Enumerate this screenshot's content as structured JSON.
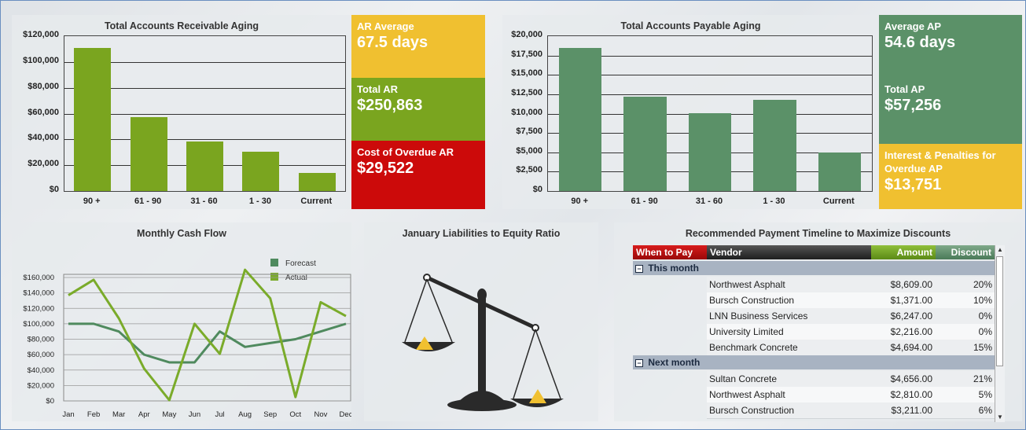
{
  "ar_chart": {
    "title": "Total Accounts Receivable Aging",
    "y_ticks": [
      "$120,000",
      "$100,000",
      "$80,000",
      "$60,000",
      "$40,000",
      "$20,000",
      "$0"
    ],
    "color": "#7aa51f"
  },
  "ap_chart": {
    "title": "Total Accounts Payable Aging",
    "y_ticks": [
      "$20,000",
      "$17,500",
      "$15,000",
      "$12,500",
      "$10,000",
      "$7,500",
      "$5,000",
      "$2,500",
      "$0"
    ],
    "color": "#5b9168"
  },
  "kpis": {
    "ar_average": {
      "label": "AR Average",
      "value": "67.5 days",
      "color": "#f0c030"
    },
    "total_ar": {
      "label": "Total AR",
      "value": "$250,863",
      "color": "#7aa51f"
    },
    "overdue_ar": {
      "label": "Cost of Overdue AR",
      "value": "$29,522",
      "color": "#cc0a0a"
    },
    "avg_ap": {
      "label": "Average AP",
      "value": "54.6 days",
      "color": "#5b9168"
    },
    "total_ap": {
      "label": "Total AP",
      "value": "$57,256",
      "color": "#5b9168"
    },
    "interest": {
      "label": "Interest & Penalties for Overdue AP",
      "value": "$13,751",
      "color": "#f0c030"
    }
  },
  "cash_flow": {
    "title": "Monthly Cash Flow",
    "y_ticks": [
      "$160,000",
      "$140,000",
      "$120,000",
      "$100,000",
      "$80,000",
      "$60,000",
      "$40,000",
      "$20,000",
      "$0"
    ],
    "legend": [
      "Forecast",
      "Actual"
    ]
  },
  "ratio": {
    "title": "January Liabilities to Equity Ratio"
  },
  "payments": {
    "title": "Recommended Payment Timeline to Maximize Discounts",
    "headers": {
      "when": "When to Pay",
      "vendor": "Vendor",
      "amount": "Amount",
      "discount": "Discount"
    },
    "groups": [
      {
        "label": "This month",
        "rows": [
          {
            "vendor": "Northwest Asphalt",
            "amount": "$8,609.00",
            "discount": "20%"
          },
          {
            "vendor": "Bursch Construction",
            "amount": "$1,371.00",
            "discount": "10%"
          },
          {
            "vendor": "LNN Business Services",
            "amount": "$6,247.00",
            "discount": "0%"
          },
          {
            "vendor": "University Limited",
            "amount": "$2,216.00",
            "discount": "0%"
          },
          {
            "vendor": "Benchmark Concrete",
            "amount": "$4,694.00",
            "discount": "15%"
          }
        ]
      },
      {
        "label": "Next month",
        "rows": [
          {
            "vendor": "Sultan Concrete",
            "amount": "$4,656.00",
            "discount": "21%"
          },
          {
            "vendor": "Northwest Asphalt",
            "amount": "$2,810.00",
            "discount": "5%"
          },
          {
            "vendor": "Bursch Construction",
            "amount": "$3,211.00",
            "discount": "6%"
          }
        ]
      }
    ]
  },
  "chart_data": [
    {
      "type": "bar",
      "title": "Total Accounts Receivable Aging",
      "categories": [
        "90 +",
        "61 - 90",
        "31 - 60",
        "1 - 30",
        "Current"
      ],
      "values": [
        111000,
        57000,
        38500,
        30500,
        14000
      ],
      "ylim": [
        0,
        120000
      ]
    },
    {
      "type": "bar",
      "title": "Total Accounts Payable Aging",
      "categories": [
        "90 +",
        "61 - 90",
        "31 - 60",
        "1 - 30",
        "Current"
      ],
      "values": [
        18500,
        12200,
        10100,
        11800,
        5000
      ],
      "ylim": [
        0,
        20000
      ]
    },
    {
      "type": "line",
      "title": "Monthly Cash Flow",
      "categories": [
        "Jan",
        "Feb",
        "Mar",
        "Apr",
        "May",
        "Jun",
        "Jul",
        "Aug",
        "Sep",
        "Oct",
        "Nov",
        "Dec"
      ],
      "ylim": [
        0,
        160000
      ],
      "series": [
        {
          "name": "Forecast",
          "color": "#4f8a5e",
          "values": [
            100000,
            100000,
            90000,
            60000,
            50000,
            50000,
            90000,
            70000,
            75000,
            80000,
            90000,
            100000
          ]
        },
        {
          "name": "Actual",
          "color": "#7aab2a",
          "values": [
            137000,
            157000,
            107000,
            42000,
            1000,
            100000,
            61000,
            170000,
            133000,
            5000,
            128000,
            110000
          ]
        }
      ]
    }
  ]
}
